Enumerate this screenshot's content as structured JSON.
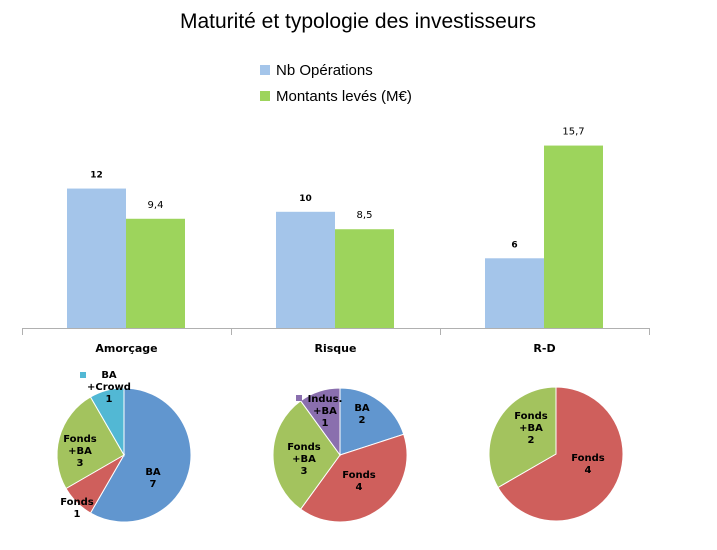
{
  "chart_data": [
    {
      "type": "bar",
      "title": "Maturité et typologie des investisseurs",
      "categories": [
        "Amorçage",
        "Risque",
        "R-D"
      ],
      "series": [
        {
          "name": "Nb Opérations",
          "values": [
            12,
            10,
            6
          ],
          "labels": [
            "12",
            "10",
            "6"
          ],
          "color": "#a4c5ea"
        },
        {
          "name": "Montants levés (M€)",
          "values": [
            9.4,
            8.5,
            15.7
          ],
          "labels": [
            "9,4",
            "8,5",
            "15,7"
          ],
          "color": "#9dd45c"
        }
      ],
      "legend_position": "top-center",
      "grid": false
    },
    {
      "type": "pie",
      "category": "Amorçage",
      "slices": [
        {
          "label": [
            "BA",
            "7"
          ],
          "value": 7,
          "color": "#6196cf"
        },
        {
          "label": [
            "Fonds",
            "1"
          ],
          "value": 1,
          "color": "#cf5f5c"
        },
        {
          "label": [
            "Fonds",
            "+BA",
            "3"
          ],
          "value": 3,
          "color": "#a3c35e"
        },
        {
          "label": [
            "BA",
            "+Crowd",
            "1"
          ],
          "value": 1,
          "color": "#52b8d4"
        }
      ]
    },
    {
      "type": "pie",
      "category": "Risque",
      "slices": [
        {
          "label": [
            "BA",
            "2"
          ],
          "value": 2,
          "color": "#6196cf"
        },
        {
          "label": [
            "Fonds",
            "4"
          ],
          "value": 4,
          "color": "#cf5f5c"
        },
        {
          "label": [
            "Fonds",
            "+BA",
            "3"
          ],
          "value": 3,
          "color": "#a3c35e"
        },
        {
          "label": [
            "Indus.",
            "+BA",
            "1"
          ],
          "value": 1,
          "color": "#8a6fae"
        }
      ]
    },
    {
      "type": "pie",
      "category": "R-D",
      "slices": [
        {
          "label": [
            "Fonds",
            "4"
          ],
          "value": 4,
          "color": "#cf5f5c"
        },
        {
          "label": [
            "Fonds",
            "+BA",
            "2"
          ],
          "value": 2,
          "color": "#a3c35e"
        }
      ]
    }
  ]
}
